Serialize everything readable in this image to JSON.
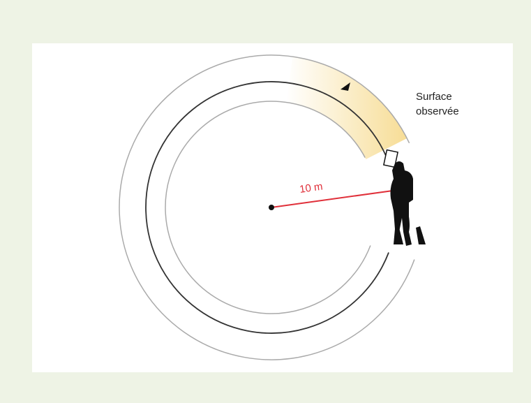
{
  "labels": {
    "surface": [
      "Surface",
      "observée"
    ],
    "radius": "10 m"
  }
}
